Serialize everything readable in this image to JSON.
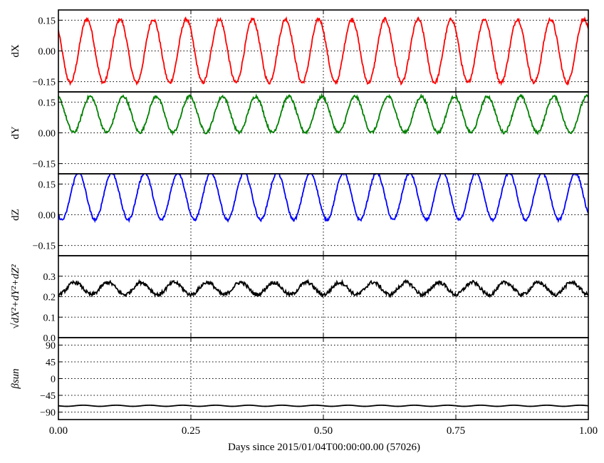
{
  "xlabel": "Days since 2015/01/04T00:00:00.00 (57026)",
  "xticks": [
    "0.00",
    "0.25",
    "0.50",
    "0.75",
    "1.00"
  ],
  "chart_data": [
    {
      "type": "line",
      "ylabel": "dX",
      "color": "#ff0000",
      "xlim": [
        0,
        1
      ],
      "ylim": [
        -0.2,
        0.2
      ],
      "yticks": [
        "0.15",
        "0.00",
        "−0.15"
      ],
      "ytick_values": [
        0.15,
        0.0,
        -0.15
      ],
      "grid": true,
      "signal": {
        "form": "sine",
        "mean": 0.0,
        "amplitude": 0.155,
        "period_days": 0.0625,
        "start_value": 0.1,
        "start_direction": "down",
        "noise": 0.008
      }
    },
    {
      "type": "line",
      "ylabel": "dY",
      "color": "#008000",
      "xlim": [
        0,
        1
      ],
      "ylim": [
        -0.2,
        0.2
      ],
      "yticks": [
        "0.15",
        "0.00",
        "−0.15"
      ],
      "ytick_values": [
        0.15,
        0.0,
        -0.15
      ],
      "grid": true,
      "signal": {
        "form": "sine",
        "mean": 0.09,
        "amplitude": 0.088,
        "period_days": 0.0625,
        "start_value": 0.175,
        "start_direction": "down",
        "clip_top": 0.2,
        "noise": 0.007
      }
    },
    {
      "type": "line",
      "ylabel": "dZ",
      "color": "#0000ff",
      "xlim": [
        0,
        1
      ],
      "ylim": [
        -0.2,
        0.2
      ],
      "yticks": [
        "0.15",
        "0.00",
        "−0.15"
      ],
      "ytick_values": [
        0.15,
        0.0,
        -0.15
      ],
      "grid": true,
      "signal": {
        "form": "sine",
        "mean": 0.09,
        "amplitude": 0.115,
        "period_days": 0.0625,
        "start_value": 0.0,
        "start_direction": "down",
        "clip_top": 0.2,
        "noise": 0.006
      }
    },
    {
      "type": "line",
      "ylabel": "√dX²+dY²+dZ²",
      "color": "#000000",
      "xlim": [
        0,
        1
      ],
      "ylim": [
        0,
        0.4
      ],
      "yticks": [
        "0.3",
        "0.2",
        "0.1",
        "0.0"
      ],
      "ytick_values": [
        0.3,
        0.2,
        0.1,
        0.0
      ],
      "grid": true,
      "signal": {
        "form": "sine",
        "mean": 0.24,
        "amplitude": 0.03,
        "period_days": 0.0625,
        "start_value": 0.21,
        "start_direction": "down",
        "noise": 0.009
      }
    },
    {
      "type": "line",
      "ylabel": "βsun",
      "color": "#000000",
      "xlim": [
        0,
        1
      ],
      "ylim": [
        -110,
        110
      ],
      "yticks": [
        "90",
        "45",
        "0",
        "−45",
        "−90"
      ],
      "ytick_values": [
        90,
        45,
        0,
        -45,
        -90
      ],
      "grid": true,
      "signal": {
        "form": "sine",
        "mean": -73,
        "amplitude": 1.5,
        "period_days": 0.0625,
        "start_value": -73,
        "start_direction": "down",
        "noise": 0
      }
    }
  ]
}
